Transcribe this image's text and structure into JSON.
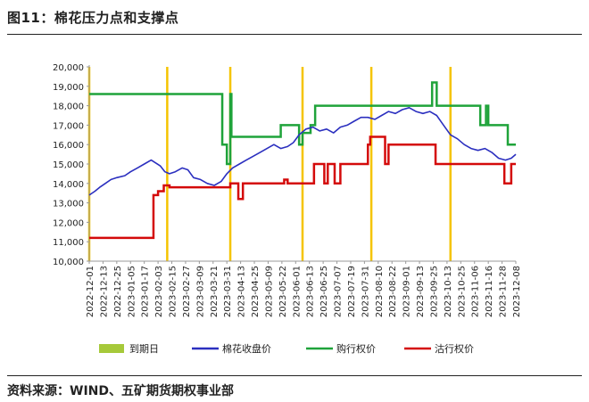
{
  "title": "图11：棉花压力点和支撑点",
  "source": "资料来源：WIND、五矿期货期权事业部",
  "chart_data": {
    "type": "line",
    "title": "图11：棉花压力点和支撑点",
    "xlabel": "",
    "ylabel": "",
    "ylim": [
      10000,
      20000
    ],
    "yticks": [
      10000,
      11000,
      12000,
      13000,
      14000,
      15000,
      16000,
      17000,
      18000,
      19000,
      20000
    ],
    "ytick_labels": [
      "10,000",
      "11,000",
      "12,000",
      "13,000",
      "14,000",
      "15,000",
      "16,000",
      "17,000",
      "18,000",
      "19,000",
      "20,000"
    ],
    "x_start": "2022-12-01",
    "x_end": "2023-12-08",
    "xtick_labels": [
      "2022-12-01",
      "2022-12-13",
      "2022-12-25",
      "2023-01-05",
      "2023-01-17",
      "2023-02-03",
      "2023-02-15",
      "2023-02-27",
      "2023-03-09",
      "2023-03-21",
      "2023-03-31",
      "2023-04-13",
      "2023-04-25",
      "2023-05-09",
      "2023-05-22",
      "2023-06-01",
      "2023-06-13",
      "2023-06-25",
      "2023-07-07",
      "2023-07-19",
      "2023-07-31",
      "2023-08-10",
      "2023-08-22",
      "2023-09-01",
      "2023-09-13",
      "2023-09-25",
      "2023-10-13",
      "2023-10-25",
      "2023-11-06",
      "2023-11-16",
      "2023-11-28",
      "2023-12-08"
    ],
    "grid": false,
    "legend_position": "bottom",
    "colors": {
      "expiry": "#f5c400",
      "legend_expiry_swatch": "#a6c93a",
      "futures": "#2b2fbf",
      "call": "#1fa33a",
      "put": "#d40a0a"
    },
    "expiry_dates": [
      "2022-12-01",
      "2023-02-07",
      "2023-04-03",
      "2023-06-05",
      "2023-08-04",
      "2023-10-12"
    ],
    "series": [
      {
        "name": "到期日",
        "kind": "vertical-lines"
      },
      {
        "name": "棉花收盘价",
        "x": [
          "2022-12-01",
          "2022-12-06",
          "2022-12-10",
          "2022-12-15",
          "2022-12-20",
          "2022-12-25",
          "2023-01-01",
          "2023-01-06",
          "2023-01-12",
          "2023-01-18",
          "2023-01-24",
          "2023-02-01",
          "2023-02-05",
          "2023-02-09",
          "2023-02-14",
          "2023-02-20",
          "2023-02-25",
          "2023-03-02",
          "2023-03-08",
          "2023-03-14",
          "2023-03-20",
          "2023-03-26",
          "2023-03-31",
          "2023-04-05",
          "2023-04-11",
          "2023-04-17",
          "2023-04-23",
          "2023-04-29",
          "2023-05-05",
          "2023-05-11",
          "2023-05-17",
          "2023-05-23",
          "2023-05-28",
          "2023-06-02",
          "2023-06-08",
          "2023-06-14",
          "2023-06-20",
          "2023-06-26",
          "2023-07-02",
          "2023-07-08",
          "2023-07-14",
          "2023-07-20",
          "2023-07-26",
          "2023-08-01",
          "2023-08-07",
          "2023-08-13",
          "2023-08-19",
          "2023-08-25",
          "2023-08-31",
          "2023-09-06",
          "2023-09-12",
          "2023-09-18",
          "2023-09-24",
          "2023-09-30",
          "2023-10-06",
          "2023-10-12",
          "2023-10-18",
          "2023-10-24",
          "2023-10-30",
          "2023-11-05",
          "2023-11-11",
          "2023-11-17",
          "2023-11-23",
          "2023-11-29",
          "2023-12-04",
          "2023-12-08"
        ],
        "values": [
          13400,
          13600,
          13800,
          14000,
          14200,
          14300,
          14400,
          14600,
          14800,
          15000,
          15200,
          14900,
          14600,
          14500,
          14600,
          14800,
          14700,
          14300,
          14200,
          14000,
          13900,
          14100,
          14500,
          14800,
          15000,
          15200,
          15400,
          15600,
          15800,
          16000,
          15800,
          15900,
          16100,
          16500,
          16800,
          16900,
          16700,
          16800,
          16600,
          16900,
          17000,
          17200,
          17400,
          17400,
          17300,
          17500,
          17700,
          17600,
          17800,
          17900,
          17700,
          17600,
          17700,
          17500,
          17000,
          16500,
          16300,
          16000,
          15800,
          15700,
          15800,
          15600,
          15300,
          15200,
          15300,
          15500
        ]
      },
      {
        "name": "购行权价",
        "steps": [
          [
            "2022-12-01",
            18600
          ],
          [
            "2023-03-27",
            16000
          ],
          [
            "2023-03-31",
            15000
          ],
          [
            "2023-04-03",
            18600
          ],
          [
            "2023-04-04",
            16400
          ],
          [
            "2023-05-17",
            17000
          ],
          [
            "2023-06-02",
            16000
          ],
          [
            "2023-06-05",
            16600
          ],
          [
            "2023-06-12",
            17000
          ],
          [
            "2023-06-16",
            18000
          ],
          [
            "2023-09-26",
            19200
          ],
          [
            "2023-09-30",
            18000
          ],
          [
            "2023-11-07",
            17000
          ],
          [
            "2023-11-12",
            18000
          ],
          [
            "2023-11-14",
            17000
          ],
          [
            "2023-12-01",
            16000
          ],
          [
            "2023-12-08",
            16000
          ]
        ]
      },
      {
        "name": "沽行权价",
        "steps": [
          [
            "2022-12-01",
            11200
          ],
          [
            "2023-01-26",
            13400
          ],
          [
            "2023-01-30",
            13600
          ],
          [
            "2023-02-04",
            13900
          ],
          [
            "2023-02-09",
            13800
          ],
          [
            "2023-04-03",
            14000
          ],
          [
            "2023-04-10",
            13200
          ],
          [
            "2023-04-14",
            14000
          ],
          [
            "2023-05-20",
            14200
          ],
          [
            "2023-05-23",
            14000
          ],
          [
            "2023-06-15",
            15000
          ],
          [
            "2023-06-24",
            14000
          ],
          [
            "2023-06-27",
            15000
          ],
          [
            "2023-07-03",
            14000
          ],
          [
            "2023-07-08",
            15000
          ],
          [
            "2023-08-01",
            16000
          ],
          [
            "2023-08-03",
            16400
          ],
          [
            "2023-08-16",
            15000
          ],
          [
            "2023-08-19",
            16000
          ],
          [
            "2023-09-29",
            15000
          ],
          [
            "2023-11-28",
            14000
          ],
          [
            "2023-12-04",
            15000
          ],
          [
            "2023-12-08",
            15000
          ]
        ]
      }
    ]
  }
}
